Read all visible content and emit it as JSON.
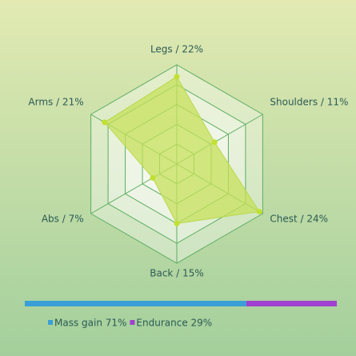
{
  "chart_data": [
    {
      "type": "radar",
      "categories": [
        "Legs / 22%",
        "Shoulders / 11%",
        "Chest / 24%",
        "Back / 15%",
        "Abs / 7%",
        "Arms / 21%"
      ],
      "values": [
        22,
        11,
        24,
        15,
        7,
        21
      ],
      "color": "#c6e05a",
      "rlim": [
        0,
        25
      ],
      "rticks": [
        5,
        10,
        15,
        20,
        25
      ]
    },
    {
      "type": "stacked-bar",
      "xlim": [
        0,
        100
      ],
      "series": [
        {
          "name": "Mass gain 71%",
          "color": "#3a9fd6",
          "values": [
            71
          ]
        },
        {
          "name": "Endurance 29%",
          "color": "#a040d0",
          "values": [
            29
          ]
        }
      ]
    }
  ]
}
